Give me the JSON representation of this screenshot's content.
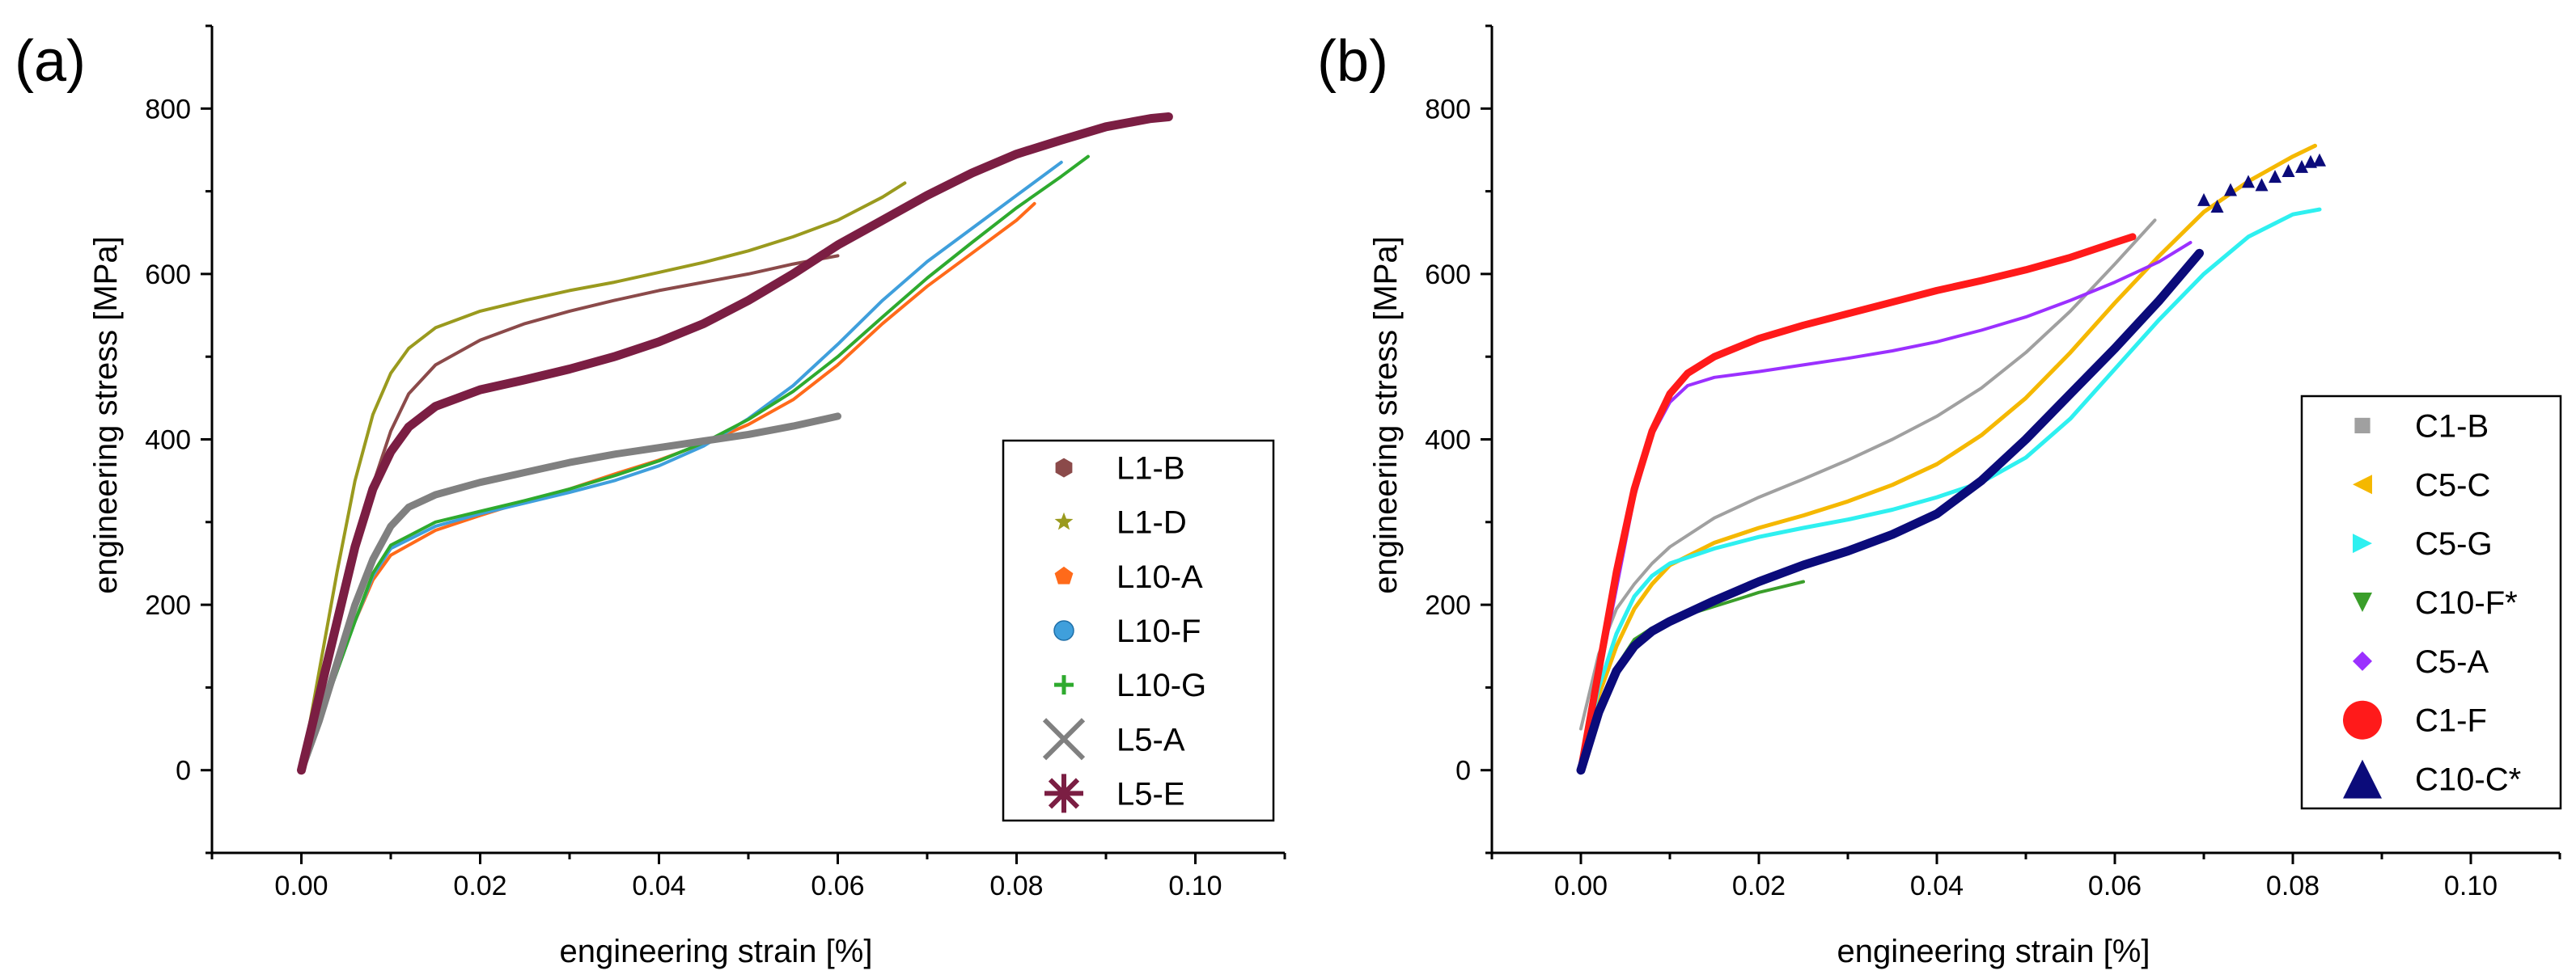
{
  "figure": {
    "panels": [
      {
        "label": "(a)"
      },
      {
        "label": "(b)"
      }
    ]
  },
  "chart_data": [
    {
      "type": "line",
      "panel": "(a)",
      "xlabel": "engineering strain [%]",
      "ylabel": "engineering stress [MPa]",
      "xlim": [
        -0.01,
        0.11
      ],
      "ylim": [
        -100,
        900
      ],
      "xticks": [
        "0.00",
        "0.02",
        "0.04",
        "0.06",
        "0.08",
        "0.10"
      ],
      "yticks": [
        "0",
        "200",
        "400",
        "600",
        "800"
      ],
      "legend_position": "bottom-right",
      "series": [
        {
          "name": "L1-B",
          "color": "#8b4a4a",
          "width": 4,
          "marker": "hexagon",
          "x": [
            0,
            0.002,
            0.004,
            0.006,
            0.008,
            0.01,
            0.012,
            0.015,
            0.02,
            0.025,
            0.03,
            0.035,
            0.04,
            0.045,
            0.05,
            0.055,
            0.06
          ],
          "y": [
            0,
            90,
            180,
            270,
            345,
            410,
            455,
            490,
            520,
            540,
            555,
            568,
            580,
            590,
            600,
            612,
            622
          ]
        },
        {
          "name": "L1-D",
          "color": "#9a9a1e",
          "width": 4,
          "marker": "star",
          "x": [
            0,
            0.002,
            0.004,
            0.006,
            0.008,
            0.01,
            0.012,
            0.015,
            0.02,
            0.025,
            0.03,
            0.035,
            0.04,
            0.045,
            0.05,
            0.055,
            0.06,
            0.065,
            0.0675
          ],
          "y": [
            0,
            120,
            240,
            350,
            430,
            480,
            510,
            535,
            555,
            568,
            580,
            590,
            602,
            614,
            628,
            645,
            665,
            693,
            710
          ]
        },
        {
          "name": "L10-A",
          "color": "#ff6a1a",
          "width": 4,
          "marker": "pentagon",
          "x": [
            0,
            0.002,
            0.004,
            0.006,
            0.008,
            0.01,
            0.015,
            0.02,
            0.025,
            0.03,
            0.035,
            0.04,
            0.045,
            0.05,
            0.055,
            0.06,
            0.065,
            0.07,
            0.075,
            0.08,
            0.082
          ],
          "y": [
            0,
            60,
            120,
            180,
            230,
            260,
            290,
            308,
            325,
            340,
            358,
            375,
            395,
            418,
            448,
            490,
            540,
            585,
            625,
            665,
            685
          ]
        },
        {
          "name": "L10-F",
          "color": "#3f9fdc",
          "width": 4,
          "marker": "sphere",
          "x": [
            0,
            0.002,
            0.004,
            0.006,
            0.008,
            0.01,
            0.015,
            0.02,
            0.025,
            0.03,
            0.035,
            0.04,
            0.045,
            0.05,
            0.055,
            0.06,
            0.065,
            0.07,
            0.075,
            0.08,
            0.085
          ],
          "y": [
            0,
            60,
            120,
            180,
            235,
            268,
            295,
            310,
            323,
            336,
            350,
            368,
            392,
            425,
            465,
            515,
            568,
            615,
            655,
            695,
            735
          ]
        },
        {
          "name": "L10-G",
          "color": "#2eaa2e",
          "width": 4,
          "marker": "plus",
          "x": [
            0,
            0.002,
            0.004,
            0.006,
            0.008,
            0.01,
            0.015,
            0.02,
            0.025,
            0.03,
            0.035,
            0.04,
            0.045,
            0.05,
            0.055,
            0.06,
            0.065,
            0.07,
            0.075,
            0.08,
            0.085,
            0.088
          ],
          "y": [
            0,
            60,
            120,
            180,
            238,
            272,
            300,
            313,
            326,
            340,
            356,
            374,
            396,
            424,
            458,
            500,
            548,
            595,
            638,
            680,
            718,
            742
          ]
        },
        {
          "name": "L5-A",
          "color": "#808080",
          "width": 9,
          "marker": "cross",
          "x": [
            0,
            0.002,
            0.004,
            0.006,
            0.008,
            0.01,
            0.012,
            0.015,
            0.02,
            0.025,
            0.03,
            0.035,
            0.04,
            0.045,
            0.05,
            0.055,
            0.06
          ],
          "y": [
            0,
            60,
            130,
            200,
            255,
            295,
            318,
            333,
            348,
            360,
            372,
            382,
            390,
            398,
            406,
            416,
            428
          ]
        },
        {
          "name": "L5-E",
          "color": "#7b1e43",
          "width": 11,
          "marker": "asterisk",
          "x": [
            0,
            0.002,
            0.004,
            0.006,
            0.008,
            0.01,
            0.012,
            0.015,
            0.02,
            0.025,
            0.03,
            0.035,
            0.04,
            0.045,
            0.05,
            0.055,
            0.06,
            0.065,
            0.07,
            0.075,
            0.08,
            0.085,
            0.09,
            0.095,
            0.097
          ],
          "y": [
            0,
            90,
            180,
            270,
            340,
            385,
            415,
            440,
            460,
            472,
            485,
            500,
            518,
            540,
            568,
            600,
            635,
            665,
            695,
            722,
            745,
            762,
            778,
            788,
            790
          ]
        }
      ]
    },
    {
      "type": "line",
      "panel": "(b)",
      "xlabel": "engineering strain [%]",
      "ylabel": "engineering stress [MPa]",
      "xlim": [
        -0.01,
        0.11
      ],
      "ylim": [
        -100,
        900
      ],
      "xticks": [
        "0.00",
        "0.02",
        "0.04",
        "0.06",
        "0.08",
        "0.10"
      ],
      "yticks": [
        "0",
        "200",
        "400",
        "600",
        "800"
      ],
      "legend_position": "bottom-right",
      "series": [
        {
          "name": "C1-B",
          "color": "#a0a0a0",
          "width": 4,
          "marker": "square",
          "x": [
            0,
            0.002,
            0.004,
            0.006,
            0.008,
            0.01,
            0.015,
            0.02,
            0.025,
            0.03,
            0.035,
            0.04,
            0.045,
            0.05,
            0.055,
            0.06,
            0.0645
          ],
          "y": [
            50,
            140,
            195,
            225,
            250,
            270,
            305,
            330,
            352,
            375,
            400,
            428,
            462,
            505,
            555,
            612,
            665
          ]
        },
        {
          "name": "C5-C",
          "color": "#f5b800",
          "width": 5,
          "marker": "triangle-left",
          "x": [
            0,
            0.002,
            0.004,
            0.006,
            0.008,
            0.01,
            0.015,
            0.02,
            0.025,
            0.03,
            0.035,
            0.04,
            0.045,
            0.05,
            0.055,
            0.06,
            0.065,
            0.07,
            0.075,
            0.08,
            0.0825
          ],
          "y": [
            0,
            90,
            150,
            195,
            225,
            248,
            275,
            293,
            308,
            325,
            345,
            370,
            405,
            450,
            505,
            565,
            622,
            675,
            712,
            742,
            755
          ]
        },
        {
          "name": "C5-G",
          "color": "#2ef0f0",
          "width": 5,
          "marker": "triangle-right",
          "x": [
            0,
            0.002,
            0.004,
            0.006,
            0.008,
            0.01,
            0.015,
            0.02,
            0.025,
            0.03,
            0.035,
            0.04,
            0.045,
            0.05,
            0.055,
            0.06,
            0.065,
            0.07,
            0.075,
            0.08,
            0.083
          ],
          "y": [
            0,
            100,
            165,
            210,
            235,
            250,
            268,
            282,
            293,
            303,
            315,
            330,
            348,
            378,
            425,
            485,
            545,
            600,
            645,
            672,
            678
          ]
        },
        {
          "name": "C10-F*",
          "color": "#3a9e2a",
          "width": 4,
          "marker": "triangle-down",
          "x": [
            0,
            0.002,
            0.004,
            0.006,
            0.008,
            0.01,
            0.012,
            0.015,
            0.018,
            0.02,
            0.022,
            0.025
          ],
          "y": [
            0,
            70,
            125,
            158,
            172,
            180,
            188,
            198,
            208,
            215,
            220,
            228
          ]
        },
        {
          "name": "C5-A",
          "color": "#9b30ff",
          "width": 4,
          "marker": "diamond",
          "x": [
            0,
            0.002,
            0.004,
            0.006,
            0.008,
            0.01,
            0.012,
            0.015,
            0.02,
            0.025,
            0.03,
            0.035,
            0.04,
            0.045,
            0.05,
            0.055,
            0.06,
            0.065,
            0.0685
          ],
          "y": [
            0,
            110,
            220,
            330,
            405,
            445,
            465,
            475,
            482,
            490,
            498,
            507,
            518,
            532,
            548,
            568,
            590,
            615,
            638
          ]
        },
        {
          "name": "C1-F",
          "color": "#ff1a1a",
          "width": 9,
          "marker": "circle",
          "x": [
            0,
            0.002,
            0.004,
            0.006,
            0.008,
            0.01,
            0.012,
            0.015,
            0.02,
            0.025,
            0.03,
            0.035,
            0.04,
            0.045,
            0.05,
            0.055,
            0.06,
            0.062
          ],
          "y": [
            0,
            120,
            240,
            340,
            410,
            455,
            480,
            500,
            522,
            538,
            552,
            566,
            580,
            592,
            605,
            620,
            638,
            645
          ]
        },
        {
          "name": "C10-C*",
          "color": "#0b0b7a",
          "width": 11,
          "marker": "triangle-up",
          "x": [
            0,
            0.002,
            0.004,
            0.006,
            0.008,
            0.01,
            0.015,
            0.02,
            0.025,
            0.03,
            0.035,
            0.04,
            0.045,
            0.05,
            0.055,
            0.06,
            0.065,
            0.0695
          ],
          "y": [
            0,
            70,
            120,
            150,
            168,
            180,
            205,
            228,
            248,
            265,
            285,
            310,
            350,
            400,
            455,
            510,
            568,
            625
          ]
        },
        {
          "name": "C10-C* (scatter)",
          "color": "#0b0b7a",
          "marker": "triangle-up",
          "style": "points",
          "x": [
            0.07,
            0.0715,
            0.073,
            0.075,
            0.0765,
            0.078,
            0.0795,
            0.081,
            0.082,
            0.083
          ],
          "y": [
            690,
            682,
            702,
            712,
            708,
            718,
            725,
            730,
            736,
            738
          ]
        }
      ]
    }
  ]
}
